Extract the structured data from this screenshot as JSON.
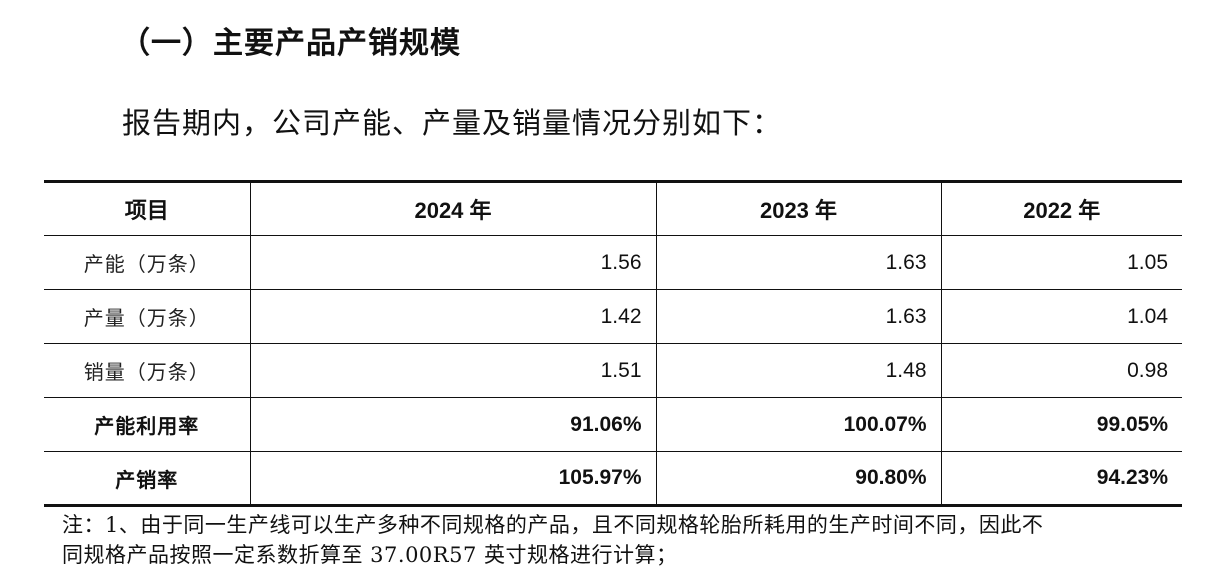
{
  "title": "（一）主要产品产销规模",
  "intro": "报告期内，公司产能、产量及销量情况分别如下：",
  "table": {
    "headers": [
      "项目",
      "2024 年",
      "2023 年",
      "2022 年"
    ],
    "rows": [
      {
        "label": "产能（万条）",
        "values": [
          "1.56",
          "1.63",
          "1.05"
        ]
      },
      {
        "label": "产量（万条）",
        "values": [
          "1.42",
          "1.63",
          "1.04"
        ]
      },
      {
        "label": "销量（万条）",
        "values": [
          "1.51",
          "1.48",
          "0.98"
        ]
      },
      {
        "label": "产能利用率",
        "values": [
          "91.06%",
          "100.07%",
          "99.05%"
        ]
      },
      {
        "label": "产销率",
        "values": [
          "105.97%",
          "90.80%",
          "94.23%"
        ]
      }
    ]
  },
  "note": {
    "line1": "注：1、由于同一生产线可以生产多种不同规格的产品，且不同规格轮胎所耗用的生产时间不同，因此不",
    "line2": "同规格产品按照一定系数折算至 37.00R57 英寸规格进行计算；"
  }
}
